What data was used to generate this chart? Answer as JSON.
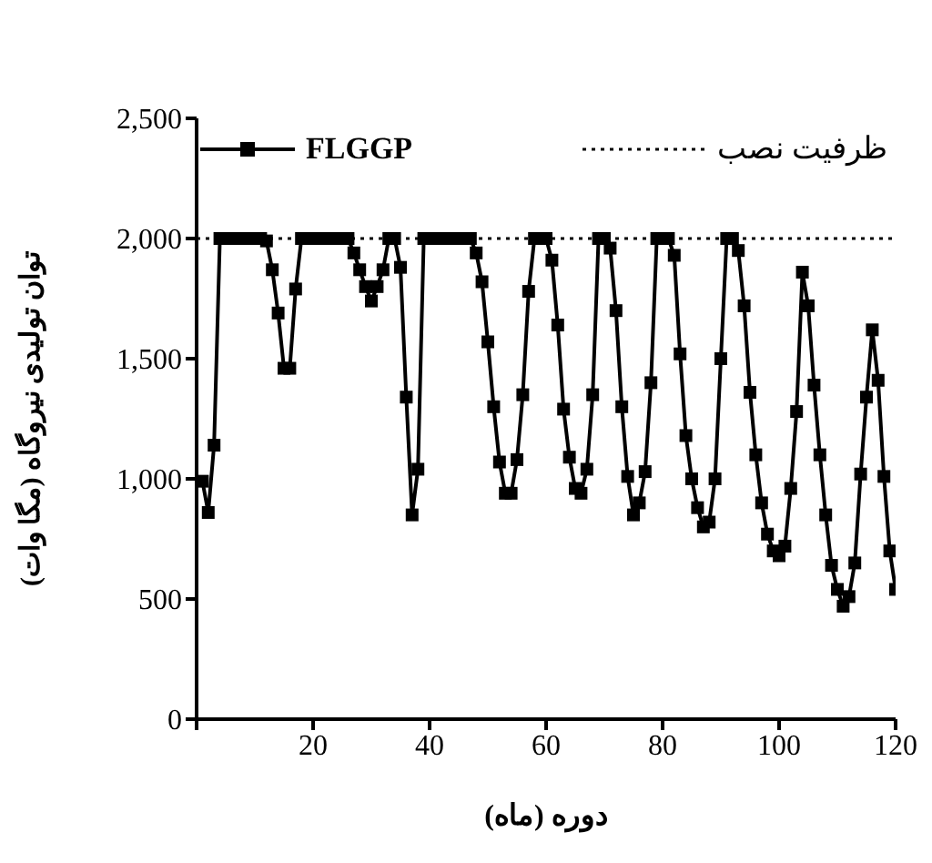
{
  "chart_data": {
    "type": "line",
    "xlabel": "دوره (ماه)",
    "ylabel": "توان توليدی نيروگاه (مگا وات)",
    "x": [
      1,
      2,
      3,
      4,
      5,
      6,
      7,
      8,
      9,
      10,
      11,
      12,
      13,
      14,
      15,
      16,
      17,
      18,
      19,
      20,
      21,
      22,
      23,
      24,
      25,
      26,
      27,
      28,
      29,
      30,
      31,
      32,
      33,
      34,
      35,
      36,
      37,
      38,
      39,
      40,
      41,
      42,
      43,
      44,
      45,
      46,
      47,
      48,
      49,
      50,
      51,
      52,
      53,
      54,
      55,
      56,
      57,
      58,
      59,
      60,
      61,
      62,
      63,
      64,
      65,
      66,
      67,
      68,
      69,
      70,
      71,
      72,
      73,
      74,
      75,
      76,
      77,
      78,
      79,
      80,
      81,
      82,
      83,
      84,
      85,
      86,
      87,
      88,
      89,
      90,
      91,
      92,
      93,
      94,
      95,
      96,
      97,
      98,
      99,
      100,
      101,
      102,
      103,
      104,
      105,
      106,
      107,
      108,
      109,
      110,
      111,
      112,
      113,
      114,
      115,
      116,
      117,
      118,
      119,
      120
    ],
    "series": [
      {
        "name": "FLGGP",
        "color": "#000000",
        "values": [
          990,
          860,
          1140,
          2000,
          2000,
          2000,
          2000,
          2000,
          2000,
          2000,
          2000,
          1990,
          1870,
          1690,
          1460,
          1460,
          1790,
          2000,
          2000,
          2000,
          2000,
          2000,
          2000,
          2000,
          2000,
          2000,
          1940,
          1870,
          1800,
          1740,
          1800,
          1870,
          2000,
          2000,
          1880,
          1340,
          850,
          1040,
          2000,
          2000,
          2000,
          2000,
          2000,
          2000,
          2000,
          2000,
          2000,
          1940,
          1820,
          1570,
          1300,
          1070,
          940,
          940,
          1080,
          1350,
          1780,
          2000,
          2000,
          2000,
          1910,
          1640,
          1290,
          1090,
          960,
          940,
          1040,
          1350,
          2000,
          2000,
          1960,
          1700,
          1300,
          1010,
          850,
          900,
          1030,
          1400,
          2000,
          2000,
          2000,
          1930,
          1520,
          1180,
          1000,
          880,
          800,
          820,
          1000,
          1500,
          2000,
          2000,
          1950,
          1720,
          1360,
          1100,
          900,
          770,
          700,
          680,
          720,
          960,
          1280,
          1860,
          1720,
          1390,
          1100,
          850,
          640,
          540,
          470,
          510,
          650,
          1020,
          1340,
          1620,
          1410,
          1010,
          700,
          540
        ]
      }
    ],
    "ref_lines": [
      {
        "axis": "y",
        "value": 2000,
        "label": "ظرفیت نصب",
        "line_style": "dotted",
        "color": "#000000"
      }
    ],
    "marker": "square",
    "line_style": "solid",
    "legend": "top",
    "xlim": [
      0,
      120
    ],
    "xticks": [
      {
        "value": 0,
        "label": null
      },
      20,
      40,
      60,
      80,
      100,
      120
    ],
    "ylim": [
      0,
      2500
    ],
    "yticks": [
      {
        "value": 0,
        "label": "0"
      },
      {
        "value": 500,
        "label": "500"
      },
      {
        "value": 1000,
        "label": "1,000"
      },
      {
        "value": 1500,
        "label": "1,500"
      },
      {
        "value": 2000,
        "label": "2,000"
      },
      {
        "value": 2500,
        "label": "2,500"
      }
    ]
  }
}
